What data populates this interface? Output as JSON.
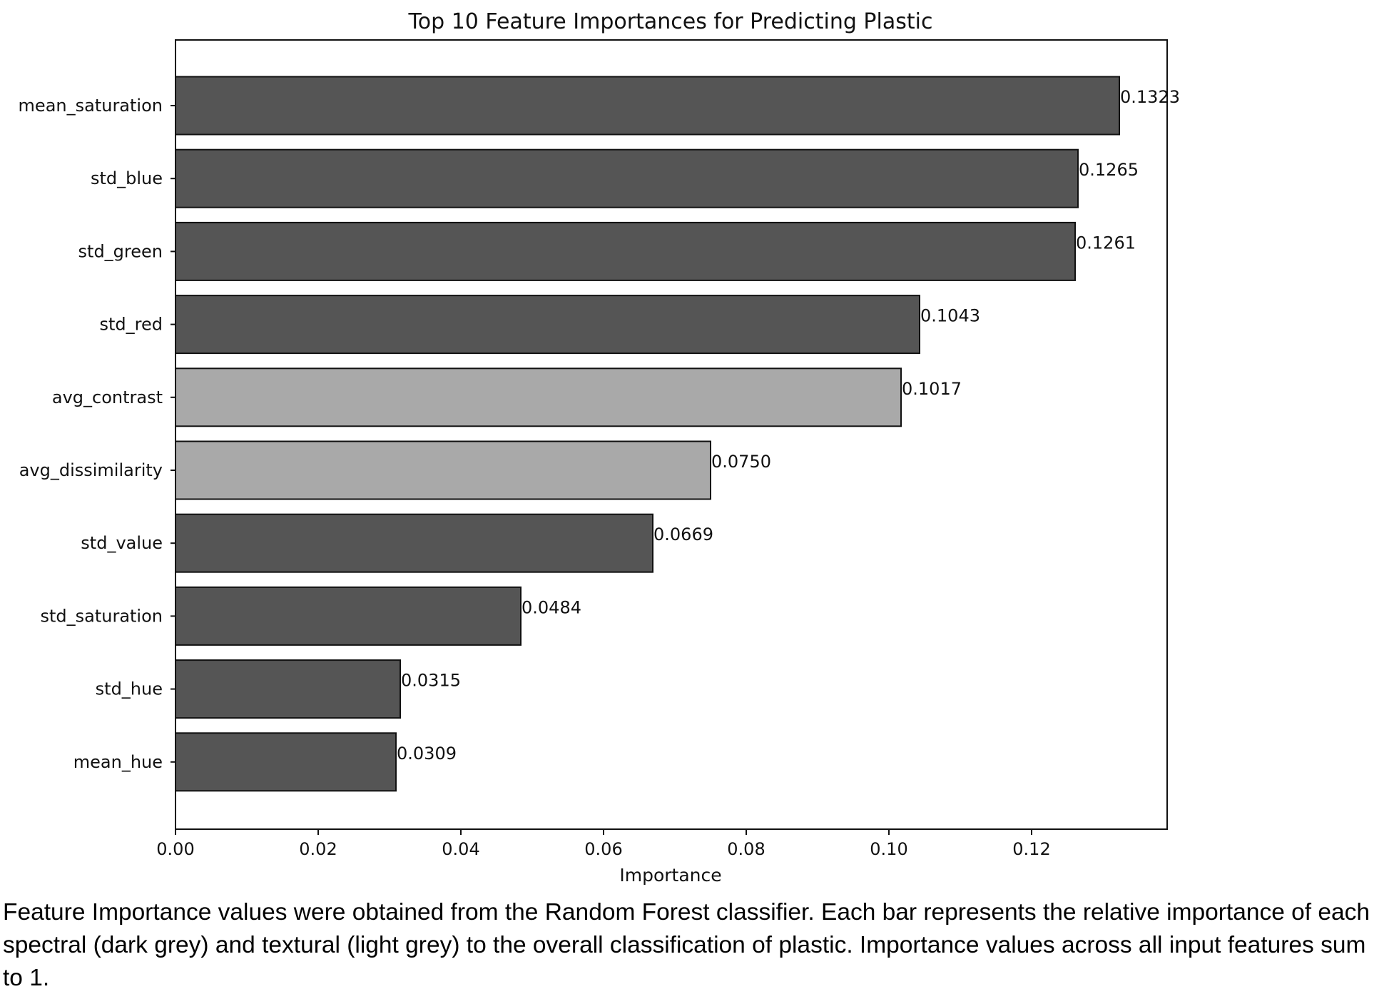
{
  "chart_data": {
    "type": "bar",
    "orientation": "horizontal",
    "title": "Top 10 Feature Importances for Predicting Plastic",
    "xlabel": "Importance",
    "ylabel": "",
    "xlim": [
      0,
      0.139
    ],
    "xticks": [
      "0.00",
      "0.02",
      "0.04",
      "0.06",
      "0.08",
      "0.10",
      "0.12"
    ],
    "grid": false,
    "categories": [
      "mean_saturation",
      "std_blue",
      "std_green",
      "std_red",
      "avg_contrast",
      "avg_dissimilarity",
      "std_value",
      "std_saturation",
      "std_hue",
      "mean_hue"
    ],
    "values": [
      0.1323,
      0.1265,
      0.1261,
      0.1043,
      0.1017,
      0.075,
      0.0669,
      0.0484,
      0.0315,
      0.0309
    ],
    "value_labels": [
      "0.1323",
      "0.1265",
      "0.1261",
      "0.1043",
      "0.1017",
      "0.0750",
      "0.0669",
      "0.0484",
      "0.0315",
      "0.0309"
    ],
    "feature_type": [
      "spectral",
      "spectral",
      "spectral",
      "spectral",
      "textural",
      "textural",
      "spectral",
      "spectral",
      "spectral",
      "spectral"
    ],
    "colors": {
      "spectral": "#555555",
      "textural": "#a9a9a9",
      "bar_edge": "#111111",
      "axis": "#111111"
    }
  },
  "caption": "Feature Importance values were obtained from the Random Forest classifier. Each bar represents the relative importance of each spectral (dark grey) and textural (light grey) to the overall classification of plastic. Importance values across all input features sum to 1."
}
